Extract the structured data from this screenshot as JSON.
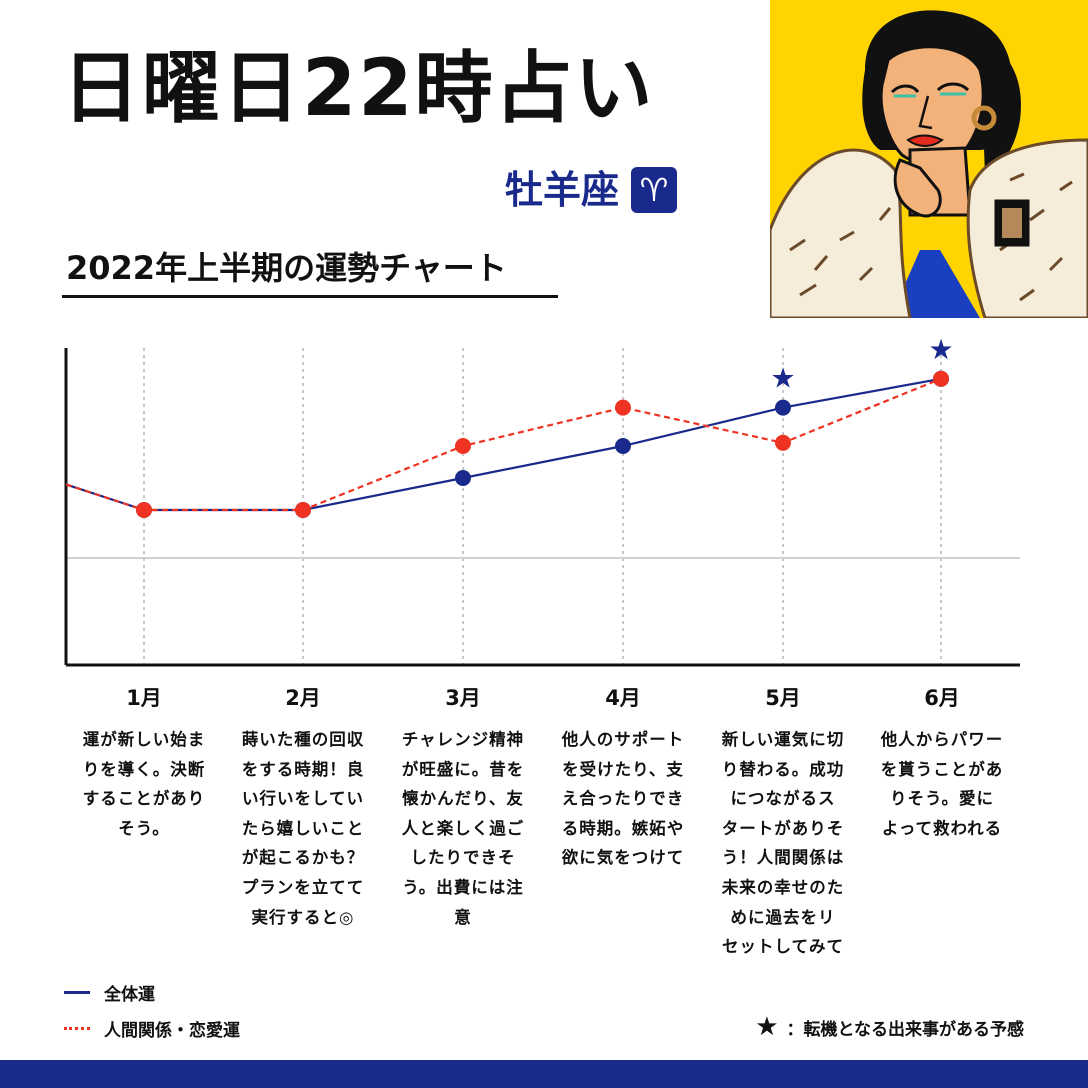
{
  "header": {
    "title": "日曜日22時占い",
    "sign_name": "牡羊座",
    "sign_symbol": "♈",
    "subtitle": "2022年上半期の運勢チャート"
  },
  "colors": {
    "navy": "#1a2a8c",
    "red": "#ee3322",
    "yellow": "#ffd400"
  },
  "chart_data": {
    "type": "line",
    "categories": [
      "1月",
      "2月",
      "3月",
      "4月",
      "5月",
      "6月"
    ],
    "series": [
      {
        "name": "全体運",
        "style": "solid",
        "color": "#1a2a8c",
        "start": 2.3,
        "values": [
          1.5,
          1.5,
          2.5,
          3.5,
          4.7,
          5.6
        ]
      },
      {
        "name": "人間関係・恋愛運",
        "style": "dashed",
        "color": "#ee3322",
        "start": 2.3,
        "values": [
          1.5,
          1.5,
          3.5,
          4.7,
          3.6,
          5.6
        ]
      }
    ],
    "turning_points": [
      "5月",
      "6月"
    ],
    "ylim": [
      -3.3,
      6.6
    ],
    "baseline": 0,
    "grid": "vertical-dotted"
  },
  "descriptions": [
    [
      "運が新しい始ま",
      "りを導く。決断",
      "することがあり",
      "そう。"
    ],
    [
      "蒔いた種の回収",
      "をする時期！良",
      "い行いをしてい",
      "たら嬉しいこと",
      "が起こるかも？",
      "プランを立てて",
      "実行すると◎"
    ],
    [
      "チャレンジ精神",
      "が旺盛に。昔を",
      "懐かんだり、友",
      "人と楽しく過ご",
      "したりできそ",
      "う。出費には注",
      "意"
    ],
    [
      "他人のサポート",
      "を受けたり、支",
      "え合ったりでき",
      "る時期。嫉妬や",
      "欲に気をつけて"
    ],
    [
      "新しい運気に切",
      "り替わる。成功",
      "につながるス",
      "タートがありそ",
      "う！人間関係は",
      "未来の幸せのた",
      "めに過去をリ",
      "セットしてみて"
    ],
    [
      "他人からパワー",
      "を貰うことがあ",
      "りそう。愛に",
      "よって救われる"
    ]
  ],
  "legend": {
    "overall": "全体運",
    "relations": "人間関係・恋愛運",
    "star_symbol": "★",
    "star_note": "：転機となる出来事がある予感"
  }
}
